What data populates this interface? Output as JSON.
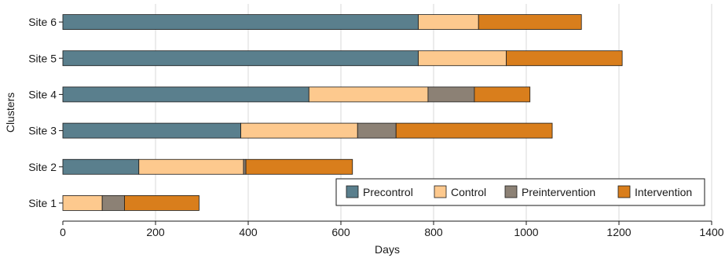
{
  "chart_data": {
    "type": "bar",
    "orientation": "horizontal",
    "stacked": true,
    "xlabel": "Days",
    "ylabel": "Clusters",
    "xlim": [
      0,
      1400
    ],
    "xticks": [
      "0",
      "200",
      "400",
      "600",
      "800",
      "1000",
      "1200",
      "1400"
    ],
    "grid": "vertical",
    "legend_position": "bottom-right",
    "categories": [
      "Site 6",
      "Site 5",
      "Site 4",
      "Site 3",
      "Site 2",
      "Site 1"
    ],
    "series": [
      {
        "name": "Precontrol",
        "color": "#5a7f8d",
        "values": [
          767,
          767,
          531,
          384,
          164,
          0
        ]
      },
      {
        "name": "Control",
        "color": "#fdc98e",
        "values": [
          130,
          190,
          257,
          252,
          226,
          85
        ]
      },
      {
        "name": "Preintervention",
        "color": "#8c8175",
        "values": [
          0,
          0,
          100,
          83,
          5,
          48
        ]
      },
      {
        "name": "Intervention",
        "color": "#d97e1c",
        "values": [
          222,
          250,
          120,
          337,
          230,
          161
        ]
      }
    ]
  }
}
